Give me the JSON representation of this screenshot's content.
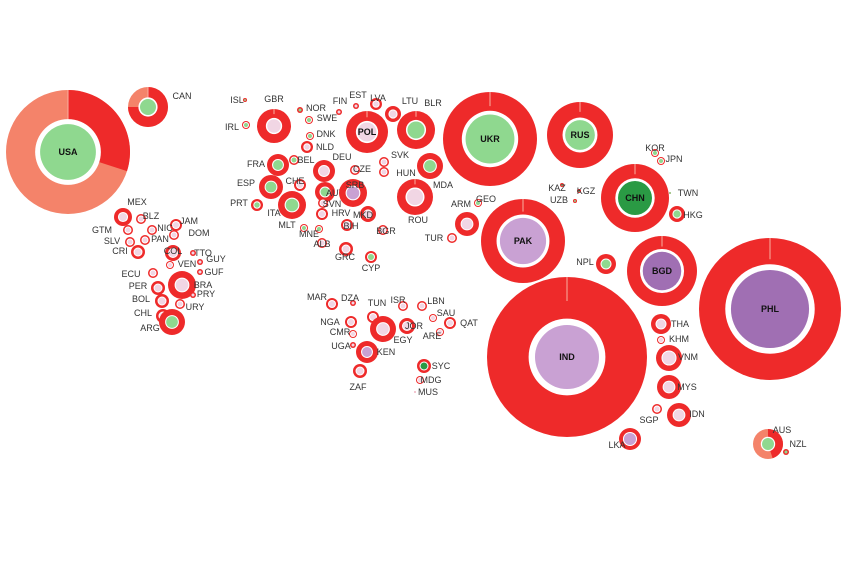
{
  "colors": {
    "ring": "#ee2a2a",
    "ring_alt": "#f4836a",
    "core_green": "#8fd88f",
    "core_dark_green": "#2a9a44",
    "core_light": "#f1d6e4",
    "core_mid_purple": "#c9a1d3",
    "core_purple": "#a06fb3",
    "label": "#333333"
  },
  "countries": [
    {
      "code": "USA",
      "core": "core_green",
      "split": 0.7,
      "label_inside": true
    },
    {
      "code": "CAN",
      "core": "core_green",
      "split": 0.25
    },
    {
      "code": "ISL",
      "core": "core_green"
    },
    {
      "code": "IRL",
      "core": "core_green"
    },
    {
      "code": "GBR",
      "core": "core_light"
    },
    {
      "code": "NOR",
      "core": "core_green"
    },
    {
      "code": "SWE",
      "core": "core_green"
    },
    {
      "code": "FIN",
      "core": "core_light"
    },
    {
      "code": "EST",
      "core": "core_light"
    },
    {
      "code": "LVA",
      "core": "core_light"
    },
    {
      "code": "LTU",
      "core": "core_light"
    },
    {
      "code": "BLR",
      "core": "core_green"
    },
    {
      "code": "DNK",
      "core": "core_green"
    },
    {
      "code": "NLD",
      "core": "core_light"
    },
    {
      "code": "POL",
      "core": "core_light",
      "label_inside": true
    },
    {
      "code": "UKR",
      "core": "core_green",
      "label_inside": true
    },
    {
      "code": "RUS",
      "core": "core_green",
      "label_inside": true
    },
    {
      "code": "FRA",
      "core": "core_green"
    },
    {
      "code": "BEL",
      "core": "core_green"
    },
    {
      "code": "DEU",
      "core": "core_light"
    },
    {
      "code": "CZE",
      "core": "core_light"
    },
    {
      "code": "SVK",
      "core": "core_light"
    },
    {
      "code": "HUN",
      "core": "core_light"
    },
    {
      "code": "MDA",
      "core": "core_green"
    },
    {
      "code": "ESP",
      "core": "core_green"
    },
    {
      "code": "CHE",
      "core": "core_light"
    },
    {
      "code": "AUT",
      "core": "core_green"
    },
    {
      "code": "PRT",
      "core": "core_green"
    },
    {
      "code": "ITA",
      "core": "core_green"
    },
    {
      "code": "SVN",
      "core": "core_light"
    },
    {
      "code": "SRB",
      "core": "core_mid_purple"
    },
    {
      "code": "ROU",
      "core": "core_light"
    },
    {
      "code": "MLT",
      "core": "core_green"
    },
    {
      "code": "HRV",
      "core": "core_light"
    },
    {
      "code": "MKD",
      "core": "core_light"
    },
    {
      "code": "MNE",
      "core": "core_green"
    },
    {
      "code": "BIH",
      "core": "core_light"
    },
    {
      "code": "BGR",
      "core": "core_light"
    },
    {
      "code": "ALB",
      "core": "core_light"
    },
    {
      "code": "GRC",
      "core": "core_light"
    },
    {
      "code": "CYP",
      "core": "core_green"
    },
    {
      "code": "KOR",
      "core": "core_green"
    },
    {
      "code": "JPN",
      "core": "core_green"
    },
    {
      "code": "TWN",
      "core": "core_green"
    },
    {
      "code": "KAZ",
      "core": "core_green"
    },
    {
      "code": "KGZ",
      "core": "core_green"
    },
    {
      "code": "UZB",
      "core": "core_green"
    },
    {
      "code": "CHN",
      "core": "core_dark_green",
      "label_inside": true
    },
    {
      "code": "HKG",
      "core": "core_green"
    },
    {
      "code": "ARM",
      "core": "core_light"
    },
    {
      "code": "GEO",
      "core": "core_green"
    },
    {
      "code": "TUR",
      "core": "core_light"
    },
    {
      "code": "PAK",
      "core": "core_mid_purple",
      "label_inside": true
    },
    {
      "code": "NPL",
      "core": "core_green"
    },
    {
      "code": "BGD",
      "core": "core_purple",
      "label_inside": true
    },
    {
      "code": "PHL",
      "core": "core_purple",
      "label_inside": true
    },
    {
      "code": "IND",
      "core": "core_mid_purple",
      "label_inside": true
    },
    {
      "code": "THA",
      "core": "core_light"
    },
    {
      "code": "KHM",
      "core": "core_light"
    },
    {
      "code": "VNM",
      "core": "core_light"
    },
    {
      "code": "MYS",
      "core": "core_light"
    },
    {
      "code": "IDN",
      "core": "core_light"
    },
    {
      "code": "SGP",
      "core": "core_light"
    },
    {
      "code": "LKA",
      "core": "core_mid_purple"
    },
    {
      "code": "AUS",
      "core": "core_green",
      "split": 0.55
    },
    {
      "code": "NZL",
      "core": "core_green"
    },
    {
      "code": "MEX",
      "core": "core_light"
    },
    {
      "code": "BLZ",
      "core": "core_light"
    },
    {
      "code": "JAM",
      "core": "core_light"
    },
    {
      "code": "GTM",
      "core": "core_light"
    },
    {
      "code": "NIC",
      "core": "core_light"
    },
    {
      "code": "DOM",
      "core": "core_light"
    },
    {
      "code": "SLV",
      "core": "core_light"
    },
    {
      "code": "PAN",
      "core": "core_light"
    },
    {
      "code": "CRI",
      "core": "core_light"
    },
    {
      "code": "COL",
      "core": "core_light"
    },
    {
      "code": "TTO",
      "core": "core_light"
    },
    {
      "code": "GUY",
      "core": "core_light"
    },
    {
      "code": "VEN",
      "core": "core_light"
    },
    {
      "code": "GUF",
      "core": "core_light"
    },
    {
      "code": "ECU",
      "core": "core_light"
    },
    {
      "code": "BRA",
      "core": "core_light"
    },
    {
      "code": "PER",
      "core": "core_light"
    },
    {
      "code": "PRY",
      "core": "core_light"
    },
    {
      "code": "BOL",
      "core": "core_light"
    },
    {
      "code": "URY",
      "core": "core_light"
    },
    {
      "code": "CHL",
      "core": "core_light"
    },
    {
      "code": "ARG",
      "core": "core_green"
    },
    {
      "code": "MAR",
      "core": "core_light"
    },
    {
      "code": "DZA",
      "core": "core_light"
    },
    {
      "code": "ISR",
      "core": "core_light"
    },
    {
      "code": "LBN",
      "core": "core_light"
    },
    {
      "code": "TUN",
      "core": "core_light"
    },
    {
      "code": "NGA",
      "core": "core_light"
    },
    {
      "code": "SAU",
      "core": "core_light"
    },
    {
      "code": "JOR",
      "core": "core_light"
    },
    {
      "code": "QAT",
      "core": "core_light"
    },
    {
      "code": "CMR",
      "core": "core_light"
    },
    {
      "code": "ARE",
      "core": "core_light"
    },
    {
      "code": "EGY",
      "core": "core_light"
    },
    {
      "code": "UGA",
      "core": "core_light"
    },
    {
      "code": "KEN",
      "core": "core_mid_purple"
    },
    {
      "code": "SYC",
      "core": "core_dark_green"
    },
    {
      "code": "MDG",
      "core": "core_light"
    },
    {
      "code": "ZAF",
      "core": "core_light"
    },
    {
      "code": "MUS",
      "core": "core_light"
    }
  ]
}
